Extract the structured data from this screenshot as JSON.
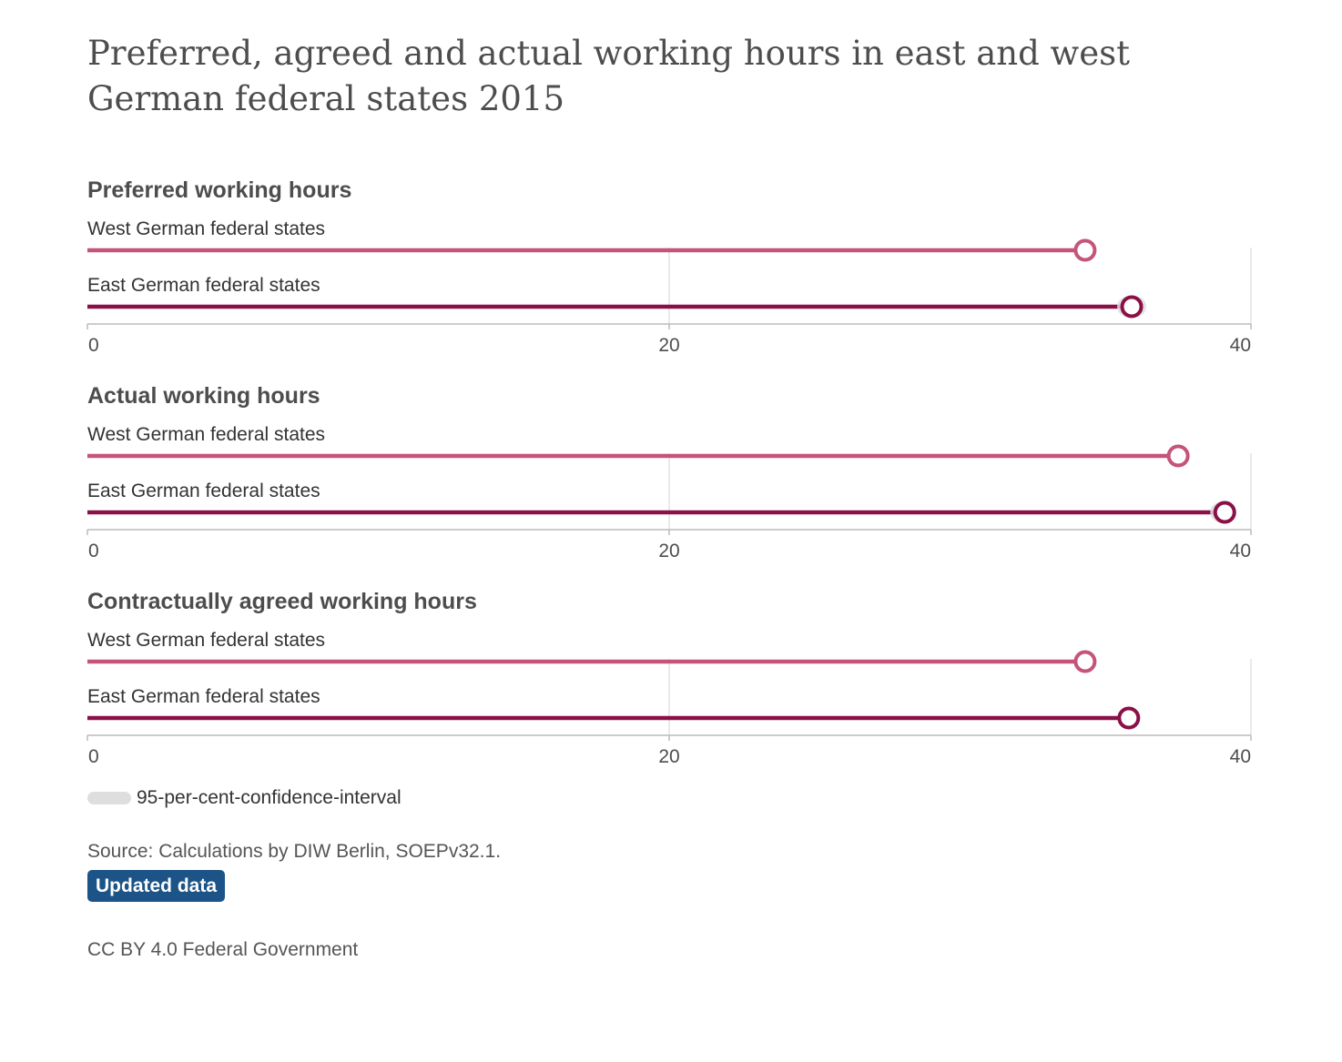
{
  "title": "Preferred, agreed and actual working hours in east and west German federal states 2015",
  "chart_data": {
    "type": "dot-plot",
    "xlim": [
      0,
      40
    ],
    "ticks": [
      0,
      20,
      40
    ],
    "colors": {
      "west": "#c4547a",
      "east": "#8a1048",
      "ci": "#dedede",
      "axis": "#bbbbbb",
      "grid": "#e3e3e3"
    },
    "panels": [
      {
        "title": "Preferred working hours",
        "rows": [
          {
            "label": "West German federal states",
            "value": 34.3,
            "ci": [
              34.1,
              34.5
            ],
            "series": "west"
          },
          {
            "label": "East German federal states",
            "value": 35.9,
            "ci": [
              35.4,
              36.4
            ],
            "series": "east"
          }
        ]
      },
      {
        "title": "Actual working hours",
        "rows": [
          {
            "label": "West German federal states",
            "value": 37.5,
            "ci": [
              37.3,
              37.7
            ],
            "series": "west"
          },
          {
            "label": "East German federal states",
            "value": 39.1,
            "ci": [
              38.6,
              39.4
            ],
            "series": "east"
          }
        ]
      },
      {
        "title": "Contractually agreed working hours",
        "rows": [
          {
            "label": "West German federal states",
            "value": 34.3,
            "ci": [
              34.2,
              34.4
            ],
            "series": "west"
          },
          {
            "label": "East German federal states",
            "value": 35.8,
            "ci": [
              35.6,
              36.0
            ],
            "series": "east"
          }
        ]
      }
    ]
  },
  "legend": {
    "ci_label": "95-per-cent-confidence-interval"
  },
  "source": "Source: Calculations by DIW Berlin, SOEPv32.1.",
  "badge": "Updated data",
  "license": "CC BY 4.0 Federal Government"
}
